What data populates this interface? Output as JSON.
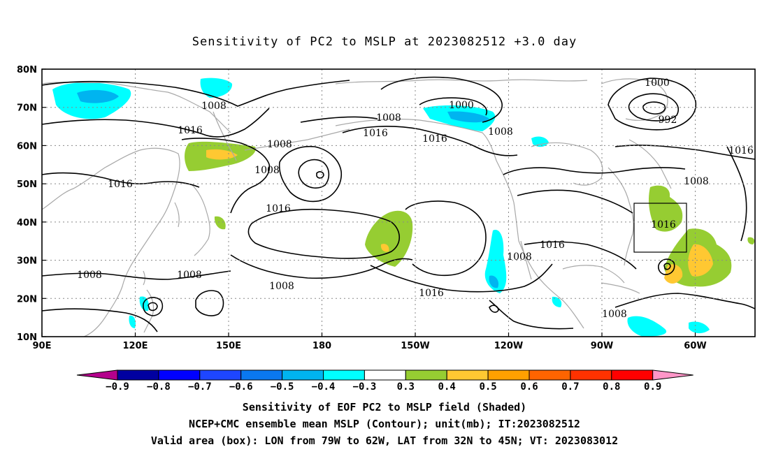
{
  "title": "Sensitivity of PC2 to MSLP at 2023082512 +3.0 day",
  "lat_labels": [
    "80N",
    "70N",
    "60N",
    "50N",
    "40N",
    "30N",
    "20N",
    "10N"
  ],
  "lon_labels": [
    "90E",
    "120E",
    "150E",
    "180",
    "150W",
    "120W",
    "90W",
    "60W"
  ],
  "contour_labels": [
    "1008",
    "1016",
    "1008",
    "1008",
    "1016",
    "1016",
    "1008",
    "1008",
    "1000",
    "1008",
    "1016",
    "1016",
    "1008",
    "1000",
    "992",
    "1016",
    "1008",
    "1016",
    "1016",
    "1008",
    "1016",
    "1008",
    "1008"
  ],
  "colorbar": {
    "labels": [
      "−0.9",
      "−0.8",
      "−0.7",
      "−0.6",
      "−0.5",
      "−0.4",
      "−0.3",
      "0.3",
      "0.4",
      "0.5",
      "0.6",
      "0.7",
      "0.8",
      "0.9"
    ],
    "colors": [
      "#b4008c",
      "#0000a0",
      "#0000ff",
      "#1e46ff",
      "#0a78f0",
      "#00b4f0",
      "#00ffff",
      "#ffffff",
      "#96cd32",
      "#ffc832",
      "#ffa000",
      "#ff6400",
      "#ff3200",
      "#ff0000",
      "#ff96c8"
    ]
  },
  "valid_box": {
    "lon_range": "79W to 62W",
    "lat_range": "32N to 45N"
  },
  "captions": [
    "Sensitivity of EOF PC2 to MSLP field (Shaded)",
    "NCEP+CMC ensemble mean MSLP (Contour); unit(mb); IT:2023082512",
    "Valid area (box): LON from 79W to 62W, LAT from 32N to 45N; VT: 2023083012"
  ]
}
